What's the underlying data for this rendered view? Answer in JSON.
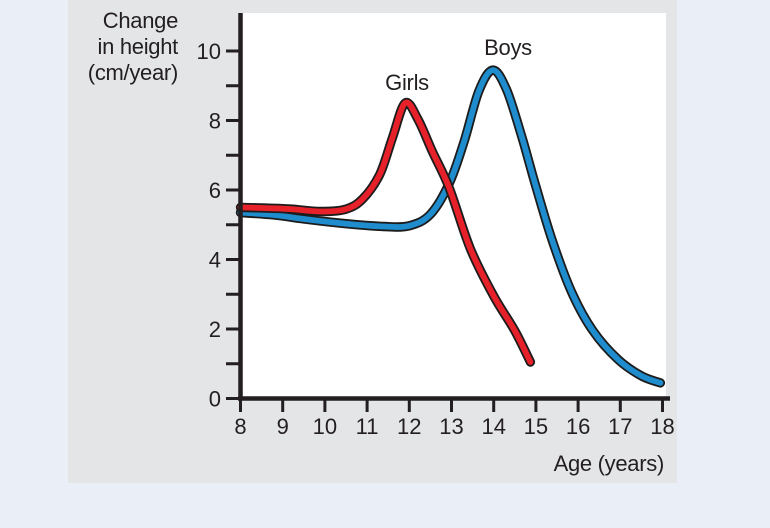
{
  "figure": {
    "background_color": "#e9eef7",
    "panel_color": "#e4e5e7",
    "plot_background": "#ffffff",
    "axis_color": "#231f20",
    "text_color": "#231f20"
  },
  "chart_data": {
    "type": "line",
    "title": "",
    "x_axis_label": "Age (years)",
    "y_axis_label": "Change in height (cm/year)",
    "y_axis_label_lines": [
      "Change",
      "in height",
      "(cm/year)"
    ],
    "xlim": [
      8,
      18
    ],
    "ylim": [
      0,
      10
    ],
    "x_ticks": [
      8,
      9,
      10,
      11,
      12,
      13,
      14,
      15,
      16,
      17,
      18
    ],
    "y_labeled_ticks": [
      0,
      2,
      4,
      6,
      8,
      10
    ],
    "y_unlabeled_ticks": [
      1,
      3,
      5,
      7,
      9
    ],
    "grid": false,
    "legend": "labels above curve peaks",
    "series": [
      {
        "name": "Girls",
        "color": "#e7212a",
        "outline_color": "#1c1c1c",
        "points": [
          [
            8,
            5.5
          ],
          [
            8.6,
            5.48
          ],
          [
            9.2,
            5.45
          ],
          [
            9.9,
            5.38
          ],
          [
            10.5,
            5.45
          ],
          [
            10.9,
            5.75
          ],
          [
            11.3,
            6.45
          ],
          [
            11.6,
            7.5
          ],
          [
            11.9,
            8.5
          ],
          [
            12.2,
            8.05
          ],
          [
            12.55,
            7.1
          ],
          [
            12.95,
            6.05
          ],
          [
            13.45,
            4.3
          ],
          [
            14,
            2.95
          ],
          [
            14.5,
            1.95
          ],
          [
            14.87,
            1.05
          ]
        ]
      },
      {
        "name": "Boys",
        "color": "#1f8ccd",
        "outline_color": "#1c1c1c",
        "points": [
          [
            8,
            5.35
          ],
          [
            8.8,
            5.28
          ],
          [
            9.6,
            5.15
          ],
          [
            10.5,
            5.03
          ],
          [
            11.4,
            4.95
          ],
          [
            12,
            4.97
          ],
          [
            12.5,
            5.3
          ],
          [
            12.95,
            6.2
          ],
          [
            13.3,
            7.4
          ],
          [
            13.65,
            8.85
          ],
          [
            13.98,
            9.45
          ],
          [
            14.3,
            8.9
          ],
          [
            14.65,
            7.6
          ],
          [
            15,
            6.1
          ],
          [
            15.4,
            4.5
          ],
          [
            15.85,
            3.05
          ],
          [
            16.35,
            1.95
          ],
          [
            16.95,
            1.12
          ],
          [
            17.5,
            0.65
          ],
          [
            17.95,
            0.45
          ]
        ]
      }
    ]
  }
}
